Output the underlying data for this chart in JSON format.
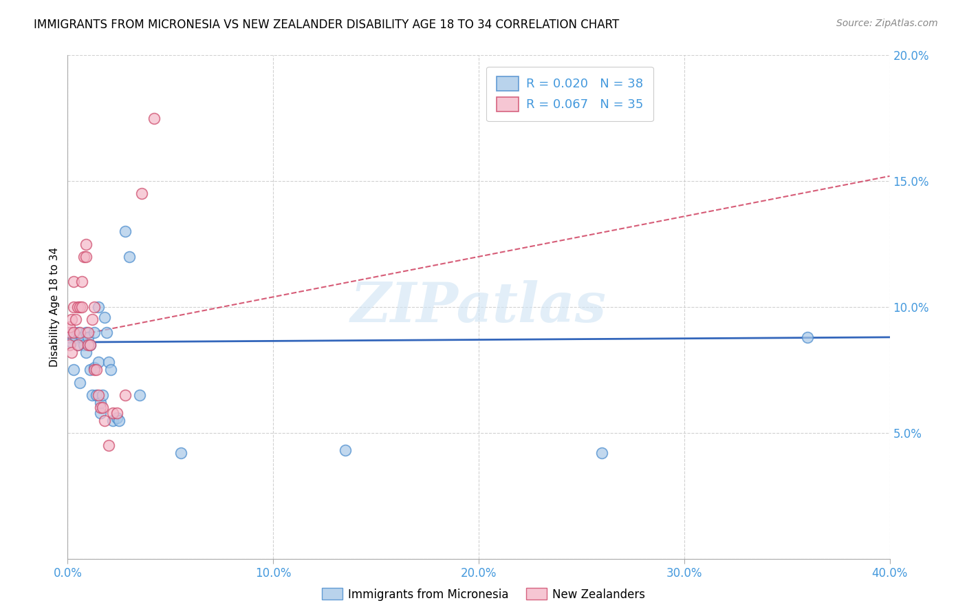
{
  "title": "IMMIGRANTS FROM MICRONESIA VS NEW ZEALANDER DISABILITY AGE 18 TO 34 CORRELATION CHART",
  "source": "Source: ZipAtlas.com",
  "ylabel": "Disability Age 18 to 34",
  "xlim": [
    0.0,
    0.4
  ],
  "ylim": [
    0.0,
    0.2
  ],
  "xticks": [
    0.0,
    0.1,
    0.2,
    0.3,
    0.4
  ],
  "yticks": [
    0.0,
    0.05,
    0.1,
    0.15,
    0.2
  ],
  "xticklabels": [
    "0.0%",
    "10.0%",
    "20.0%",
    "30.0%",
    "40.0%"
  ],
  "yticklabels": [
    "",
    "5.0%",
    "10.0%",
    "15.0%",
    "20.0%"
  ],
  "legend1_label": "Immigrants from Micronesia",
  "legend2_label": "New Zealanders",
  "R1": "0.020",
  "N1": "38",
  "R2": "0.067",
  "N2": "35",
  "color_blue": "#a8c8e8",
  "color_pink": "#f4b8c8",
  "edge_blue": "#4488cc",
  "edge_pink": "#cc4466",
  "trendline_blue": "#3366bb",
  "trendline_pink": "#cc3355",
  "tick_color": "#4499dd",
  "watermark": "ZIPatlas",
  "blue_x": [
    0.001,
    0.002,
    0.002,
    0.003,
    0.004,
    0.005,
    0.005,
    0.006,
    0.007,
    0.008,
    0.009,
    0.009,
    0.01,
    0.011,
    0.011,
    0.012,
    0.013,
    0.013,
    0.014,
    0.015,
    0.015,
    0.016,
    0.016,
    0.017,
    0.018,
    0.019,
    0.02,
    0.021,
    0.022,
    0.024,
    0.025,
    0.028,
    0.03,
    0.035,
    0.055,
    0.135,
    0.26,
    0.36
  ],
  "blue_y": [
    0.088,
    0.09,
    0.086,
    0.075,
    0.088,
    0.09,
    0.085,
    0.07,
    0.088,
    0.085,
    0.082,
    0.09,
    0.088,
    0.085,
    0.075,
    0.065,
    0.09,
    0.076,
    0.065,
    0.1,
    0.078,
    0.058,
    0.062,
    0.065,
    0.096,
    0.09,
    0.078,
    0.075,
    0.055,
    0.056,
    0.055,
    0.13,
    0.12,
    0.065,
    0.042,
    0.043,
    0.042,
    0.088
  ],
  "pink_x": [
    0.001,
    0.001,
    0.001,
    0.002,
    0.002,
    0.003,
    0.003,
    0.003,
    0.004,
    0.005,
    0.005,
    0.006,
    0.006,
    0.007,
    0.007,
    0.008,
    0.009,
    0.009,
    0.01,
    0.01,
    0.011,
    0.012,
    0.013,
    0.013,
    0.014,
    0.015,
    0.016,
    0.017,
    0.018,
    0.02,
    0.022,
    0.024,
    0.028,
    0.036,
    0.042
  ],
  "pink_y": [
    0.09,
    0.085,
    0.092,
    0.082,
    0.095,
    0.09,
    0.1,
    0.11,
    0.095,
    0.085,
    0.1,
    0.09,
    0.1,
    0.1,
    0.11,
    0.12,
    0.12,
    0.125,
    0.085,
    0.09,
    0.085,
    0.095,
    0.075,
    0.1,
    0.075,
    0.065,
    0.06,
    0.06,
    0.055,
    0.045,
    0.058,
    0.058,
    0.065,
    0.145,
    0.175
  ],
  "blue_trend_x": [
    0.0,
    0.4
  ],
  "blue_trend_y": [
    0.086,
    0.088
  ],
  "pink_trend_x": [
    0.0,
    0.4
  ],
  "pink_trend_y": [
    0.088,
    0.152
  ]
}
